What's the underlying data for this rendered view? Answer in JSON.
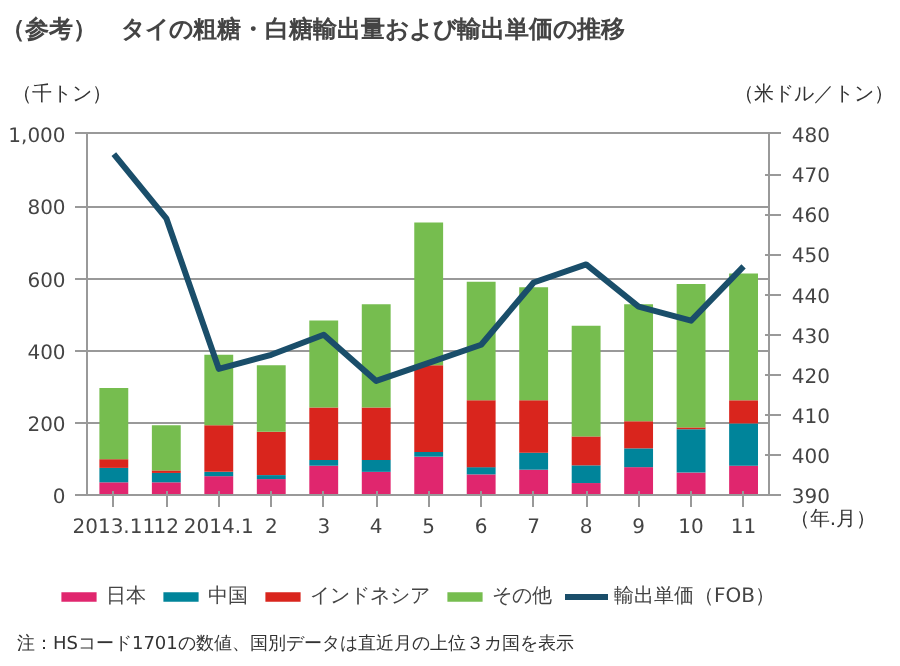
{
  "chart_data": {
    "type": "bar",
    "stacked": true,
    "title": "（参考）　タイの粗糖・白糖輸出量および輸出単価の推移",
    "ylabel": "（千トン）",
    "y2label": "（米ドル／トン）",
    "xlabel": "（年.月）",
    "categories": [
      "2013.11",
      "12",
      "2014.1",
      "2",
      "3",
      "4",
      "5",
      "6",
      "7",
      "8",
      "9",
      "10",
      "11"
    ],
    "series": [
      {
        "name": "日本",
        "color": "#e0266e",
        "values": [
          36,
          36,
          53,
          45,
          82,
          65,
          107,
          58,
          71,
          34,
          78,
          63,
          82
        ]
      },
      {
        "name": "中国",
        "color": "#00849a",
        "values": [
          40,
          26,
          12,
          11,
          16,
          33,
          13,
          20,
          47,
          49,
          52,
          120,
          117
        ]
      },
      {
        "name": "インドネシア",
        "color": "#d9251d",
        "values": [
          24,
          7,
          129,
          120,
          145,
          145,
          240,
          185,
          145,
          80,
          75,
          5,
          64
        ]
      },
      {
        "name": "その他",
        "color": "#76bd4f",
        "values": [
          197,
          125,
          195,
          184,
          241,
          286,
          395,
          328,
          313,
          306,
          324,
          397,
          351
        ]
      },
      {
        "name": "輸出単価（FOB）",
        "type": "line",
        "axis": "y2",
        "color": "#1a4e6a",
        "values": [
          475,
          459,
          421.5,
          425,
          430,
          418.5,
          423,
          427.5,
          443,
          447.5,
          437,
          433.5,
          447
        ]
      }
    ],
    "ylim": [
      0,
      1000
    ],
    "yticks": [
      0,
      200,
      400,
      600,
      800,
      {
        "value": 1000,
        "label": "1,000"
      }
    ],
    "y2lim": [
      390,
      480
    ],
    "y2ticks": [
      390,
      400,
      410,
      420,
      430,
      440,
      450,
      460,
      470,
      480
    ],
    "grid": "y",
    "legend": "bottom",
    "annotations": [
      "注：HSコード1701の数値、国別データは直近月の上位３カ国を表示"
    ]
  }
}
